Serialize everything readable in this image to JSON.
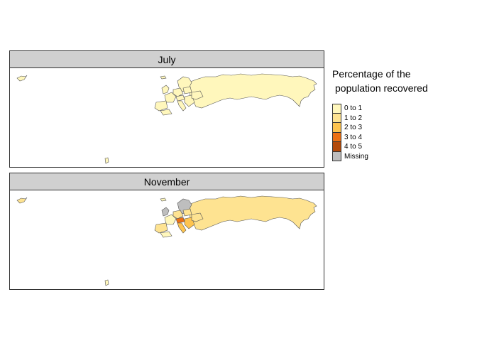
{
  "panels": [
    {
      "title": "July"
    },
    {
      "title": "November"
    }
  ],
  "legend": {
    "title_line1": "Percentage of the",
    "title_line2": "population recovered",
    "items": [
      {
        "label": "0 to 1",
        "color": "#fff7bc"
      },
      {
        "label": "1 to 2",
        "color": "#fee391"
      },
      {
        "label": "2 to 3",
        "color": "#fec44f"
      },
      {
        "label": "3 to 4",
        "color": "#ec7014"
      },
      {
        "label": "4 to 5",
        "color": "#b34a0a"
      },
      {
        "label": "Missing",
        "color": "#bebebe"
      }
    ]
  },
  "colors": {
    "border": "#333333",
    "header_bg": "#d0d0d0"
  }
}
